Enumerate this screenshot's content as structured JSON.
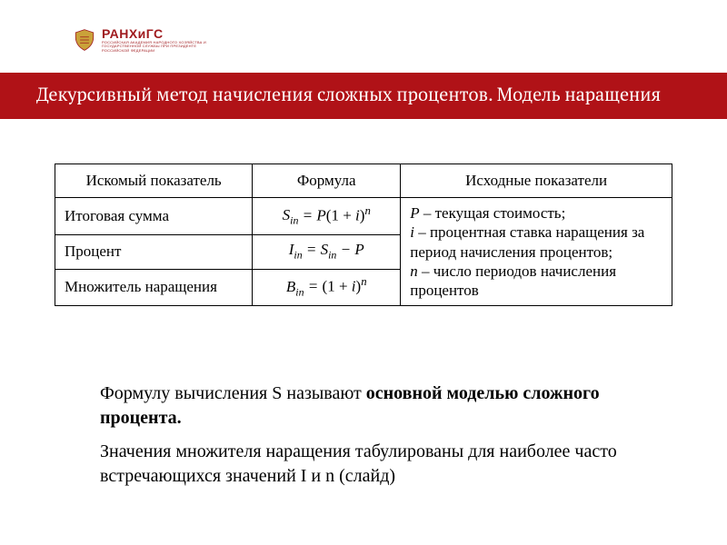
{
  "colors": {
    "brand_red": "#a01b1f",
    "title_bg": "#b01217",
    "text": "#000000",
    "white": "#ffffff",
    "logo_gold": "#caa23a"
  },
  "logo": {
    "name": "РАНХиГС",
    "subtitle": "РОССИЙСКАЯ АКАДЕМИЯ НАРОДНОГО ХОЗЯЙСТВА И ГОСУДАРСТВЕННОЙ СЛУЖБЫ ПРИ ПРЕЗИДЕНТЕ РОССИЙСКОЙ ФЕДЕРАЦИИ"
  },
  "title": "Декурсивный метод начисления сложных процентов. Модель наращения",
  "table": {
    "headers": [
      "Искомый показатель",
      "Формула",
      "Исходные показатели"
    ],
    "rows": [
      {
        "label": "Итоговая сумма",
        "formula_key": "f1"
      },
      {
        "label": "Процент",
        "formula_key": "f2"
      },
      {
        "label": "Множитель наращения",
        "formula_key": "f3"
      }
    ],
    "formulas": {
      "f1": {
        "lhs": "S",
        "sub": "in",
        "rhs_html": " = <span class='sym'>P</span><span class='upright'>(1 + </span><span class='sym'>i</span><span class='upright'>)</span><sup>n</sup>"
      },
      "f2": {
        "lhs": "I",
        "sub": "in",
        "rhs_html": " = <span class='sym'>S<sub>in</sub></span> − <span class='sym'>P</span>"
      },
      "f3": {
        "lhs": "B",
        "sub": "in",
        "rhs_html": " = <span class='upright'>(1 + </span><span class='sym'>i</span><span class='upright'>)</span><sup>n</sup>"
      }
    },
    "definitions": [
      {
        "sym": "P",
        "text": " – текущая стоимость;"
      },
      {
        "sym": "i",
        "text": " – процентная ставка наращения за период начисления процентов;"
      },
      {
        "sym": "n",
        "text": " – число периодов начисления процентов"
      }
    ]
  },
  "body": {
    "p1_prefix": "Формулу вычисления S называют ",
    "p1_bold": "основной моделью сложного процента.",
    "p2": "Значения множителя наращения табулированы для наиболее часто встречающихся значений I и n (слайд)"
  }
}
